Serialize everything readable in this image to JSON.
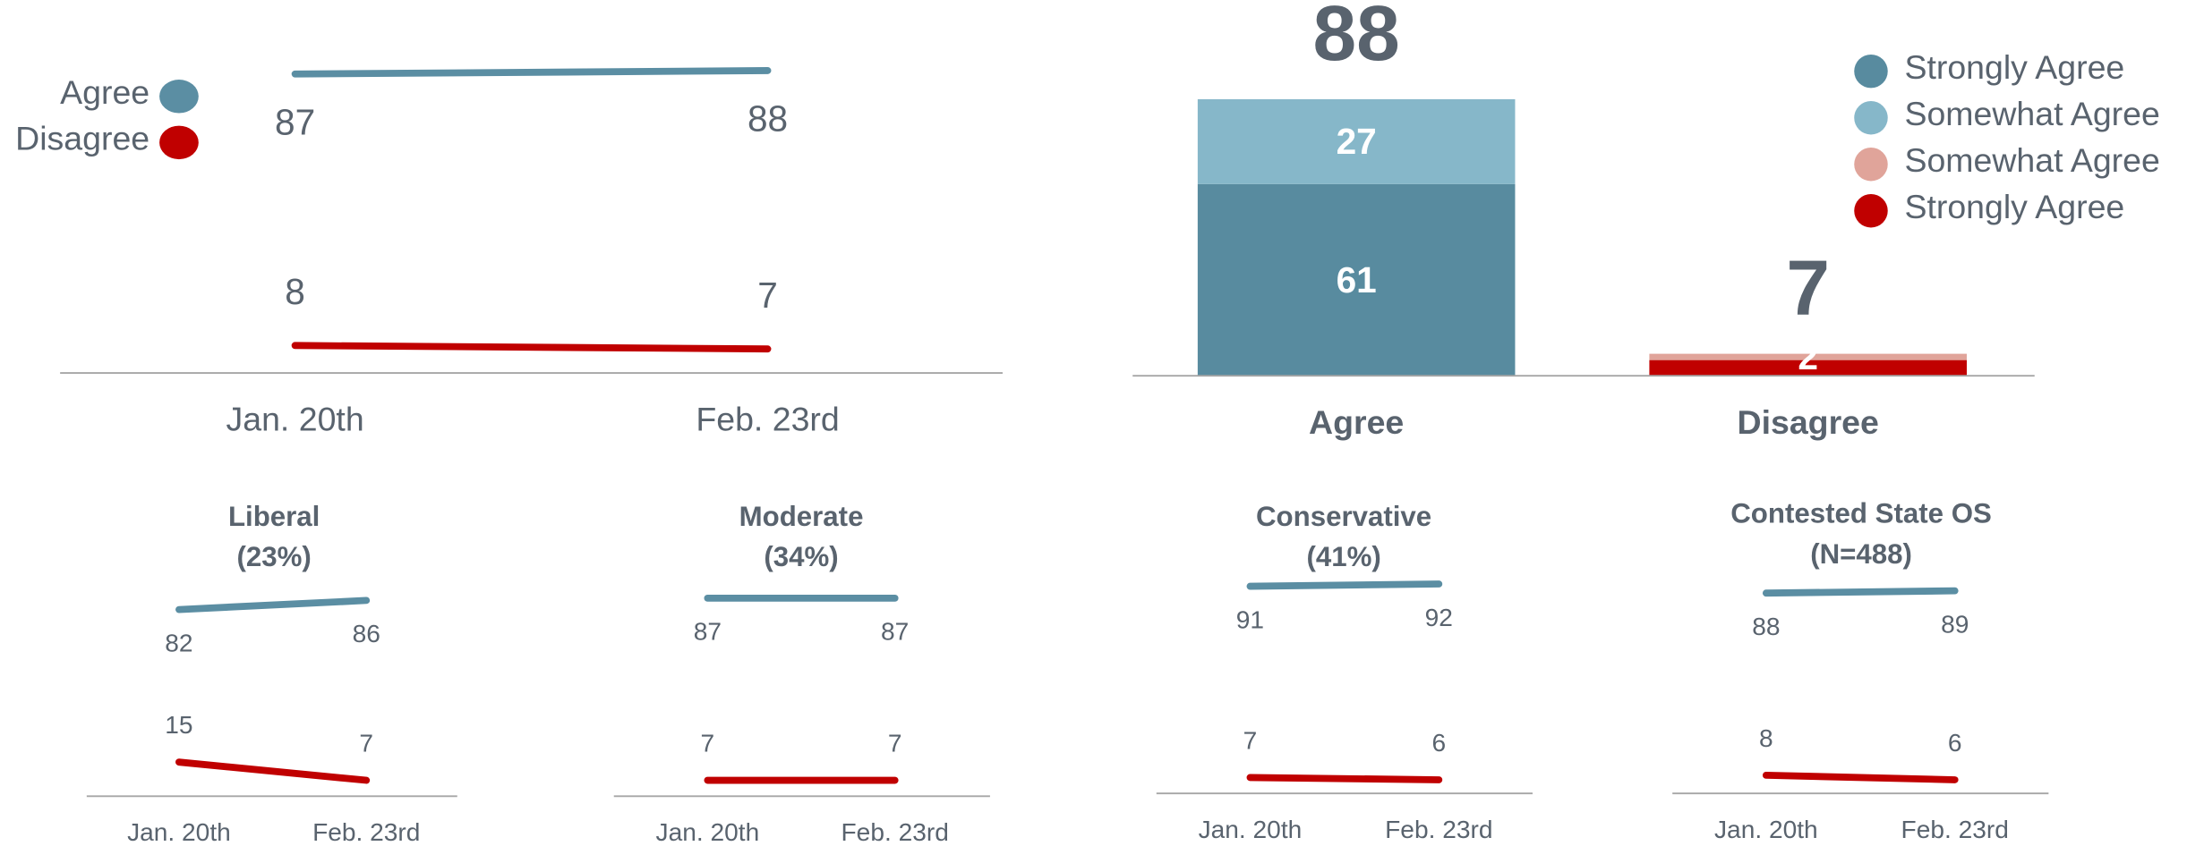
{
  "chart_data": [
    {
      "type": "line",
      "categories": [
        "Jan. 20th",
        "Feb. 23rd"
      ],
      "series": [
        {
          "name": "Agree",
          "color": "#5b8ea3",
          "values": [
            87,
            88
          ]
        },
        {
          "name": "Disagree",
          "color": "#c00000",
          "values": [
            8,
            7
          ]
        }
      ],
      "ylim": [
        0,
        100
      ],
      "legend": "left"
    },
    {
      "type": "bar",
      "stacked": true,
      "categories": [
        "Agree",
        "Disagree"
      ],
      "series": [
        {
          "name": "Strongly Agree",
          "color": "#588b9f",
          "values": [
            61,
            null
          ],
          "value_labels": [
            "61",
            null
          ]
        },
        {
          "name": "Somewhat Agree",
          "color": "#86b7c9",
          "values": [
            27,
            null
          ],
          "value_labels": [
            "27",
            null
          ]
        },
        {
          "name": "Strongly Agree",
          "color": "#c00000",
          "values": [
            null,
            5
          ],
          "value_labels": [
            null,
            null
          ]
        },
        {
          "name": "Somewhat Agree",
          "color": "#e0a49a",
          "values": [
            null,
            2
          ],
          "value_labels": [
            null,
            "2"
          ]
        }
      ],
      "legend_order": [
        0,
        1,
        3,
        2
      ],
      "totals": [
        88,
        7
      ],
      "ylim": [
        0,
        100
      ],
      "legend": "top-right"
    },
    {
      "type": "line",
      "title": "Liberal",
      "subtitle": "(23%)",
      "categories": [
        "Jan. 20th",
        "Feb. 23rd"
      ],
      "series": [
        {
          "color": "#5b8ea3",
          "values": [
            82,
            86
          ]
        },
        {
          "color": "#c00000",
          "values": [
            15,
            7
          ]
        }
      ],
      "ylim": [
        0,
        100
      ]
    },
    {
      "type": "line",
      "title": "Moderate",
      "subtitle": "(34%)",
      "categories": [
        "Jan. 20th",
        "Feb. 23rd"
      ],
      "series": [
        {
          "color": "#5b8ea3",
          "values": [
            87,
            87
          ]
        },
        {
          "color": "#c00000",
          "values": [
            7,
            7
          ]
        }
      ],
      "ylim": [
        0,
        100
      ]
    },
    {
      "type": "line",
      "title": "Conservative",
      "subtitle": "(41%)",
      "categories": [
        "Jan. 20th",
        "Feb. 23rd"
      ],
      "series": [
        {
          "color": "#5b8ea3",
          "values": [
            91,
            92
          ]
        },
        {
          "color": "#c00000",
          "values": [
            7,
            6
          ]
        }
      ],
      "ylim": [
        0,
        100
      ]
    },
    {
      "type": "line",
      "title": "Contested State OS",
      "subtitle": "(N=488)",
      "categories": [
        "Jan. 20th",
        "Feb. 23rd"
      ],
      "series": [
        {
          "color": "#5b8ea3",
          "values": [
            88,
            89
          ]
        },
        {
          "color": "#c00000",
          "values": [
            8,
            6
          ]
        }
      ],
      "ylim": [
        0,
        100
      ]
    }
  ]
}
